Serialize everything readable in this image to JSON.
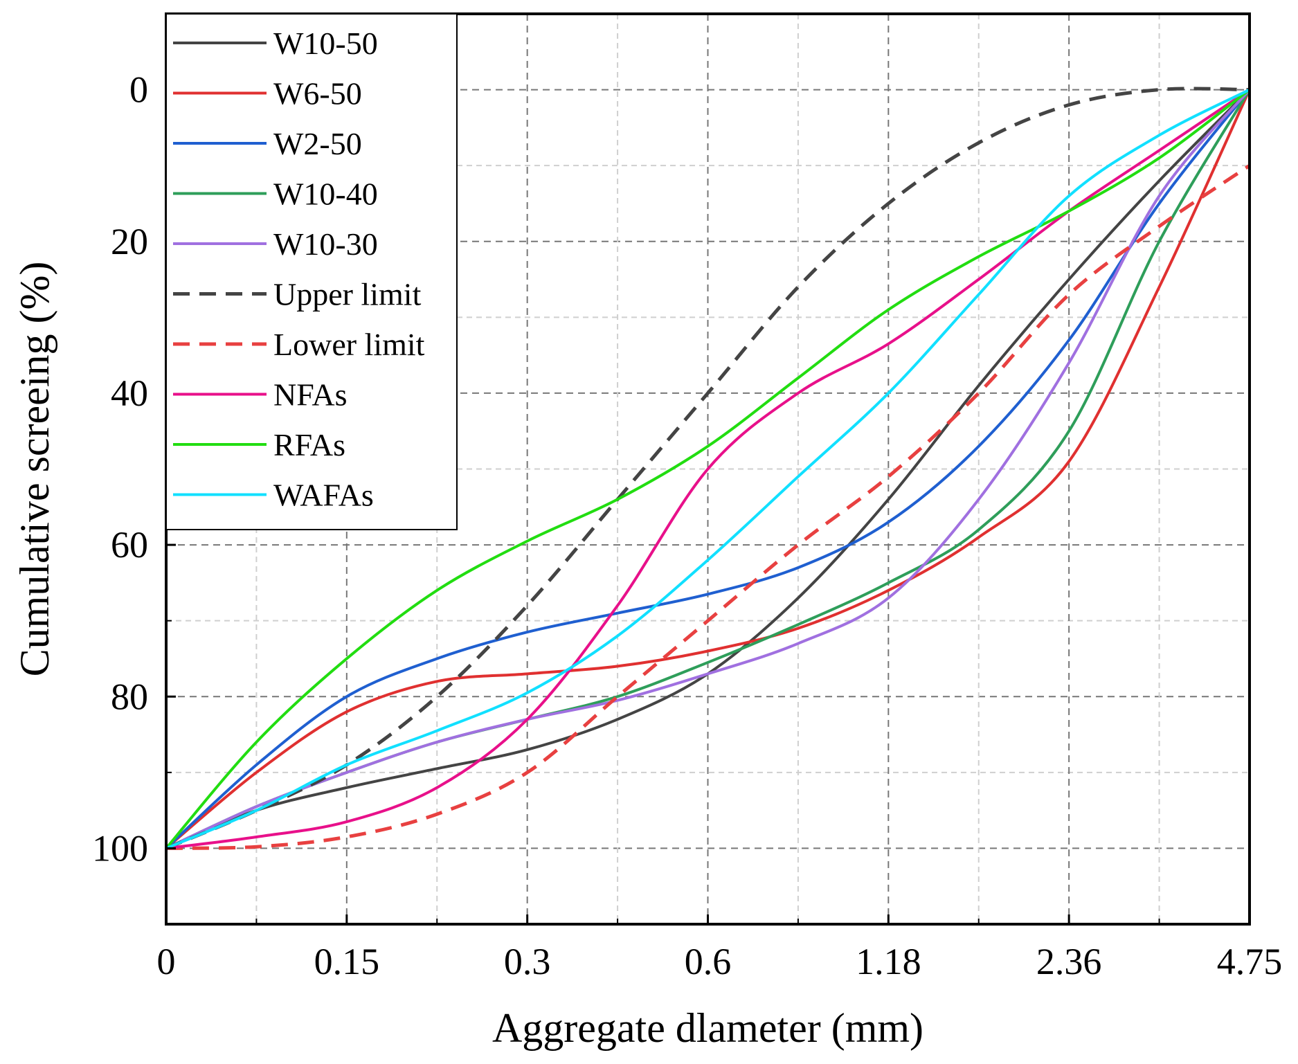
{
  "chart_data": {
    "type": "line",
    "title": "",
    "xlabel": "Aggregate dlameter (mm)",
    "ylabel": "Cumulative screeing (%)",
    "x_ticks": [
      "0",
      "0.15",
      "0.3",
      "0.6",
      "1.18",
      "2.36",
      "4.75"
    ],
    "x_tick_positions": [
      0,
      1,
      2,
      3,
      4,
      5,
      6
    ],
    "y_ticks": [
      0,
      20,
      40,
      60,
      80,
      100
    ],
    "xlim": [
      0,
      6
    ],
    "ylim": [
      110,
      -10
    ],
    "y_inverted": true,
    "grid": true,
    "legend_position": "top-left",
    "series": [
      {
        "name": "W10-50",
        "color": "#444444",
        "dash": "solid",
        "x": [
          0,
          0.5,
          1,
          1.5,
          2,
          2.5,
          3,
          3.5,
          4,
          4.5,
          5,
          5.5,
          6
        ],
        "y": [
          100,
          95,
          92,
          89.5,
          87,
          83,
          77,
          67,
          54,
          39,
          25,
          12,
          0
        ]
      },
      {
        "name": "W6-50",
        "color": "#e03030",
        "dash": "solid",
        "x": [
          0,
          0.5,
          1,
          1.5,
          2,
          2.5,
          3,
          3.5,
          4,
          4.5,
          5,
          5.5,
          6
        ],
        "y": [
          100,
          90,
          82,
          78,
          77,
          76,
          74,
          71,
          66,
          59,
          49,
          26,
          0
        ]
      },
      {
        "name": "W2-50",
        "color": "#1f5fd0",
        "dash": "solid",
        "x": [
          0,
          0.5,
          1,
          1.5,
          2,
          2.5,
          3,
          3.5,
          4,
          4.5,
          5,
          5.5,
          6
        ],
        "y": [
          100,
          89,
          80,
          75,
          71.5,
          69,
          66.5,
          63,
          57,
          47,
          33,
          15,
          0
        ]
      },
      {
        "name": "W10-40",
        "color": "#2e9e5a",
        "dash": "solid",
        "x": [
          0,
          0.5,
          1,
          1.5,
          2,
          2.5,
          3,
          3.5,
          4,
          4.5,
          5,
          5.5,
          6
        ],
        "y": [
          100,
          94.5,
          90,
          86,
          83,
          80,
          75.5,
          70.5,
          65,
          58,
          45,
          20,
          0
        ]
      },
      {
        "name": "W10-30",
        "color": "#a070e0",
        "dash": "solid",
        "x": [
          0,
          0.5,
          1,
          1.5,
          2,
          2.5,
          3,
          3.5,
          4,
          4.5,
          5,
          5.5,
          6
        ],
        "y": [
          100,
          94.5,
          90,
          86,
          83,
          80.5,
          77,
          73,
          67,
          54,
          36,
          14,
          0
        ]
      },
      {
        "name": "Upper limit",
        "color": "#444444",
        "dash": "dashed",
        "x": [
          0,
          0.5,
          1,
          1.5,
          2,
          2.5,
          3,
          3.5,
          4,
          4.5,
          5,
          5.5,
          6
        ],
        "y": [
          100,
          95,
          89,
          80,
          68,
          54,
          40,
          26,
          15,
          7,
          2,
          0,
          0
        ]
      },
      {
        "name": "Lower limit",
        "color": "#e84040",
        "dash": "dashed",
        "x": [
          0,
          0.5,
          1,
          1.5,
          2,
          2.5,
          3,
          3.5,
          4,
          4.5,
          5,
          5.5,
          6
        ],
        "y": [
          100,
          99.8,
          98.5,
          95.5,
          90,
          80,
          70,
          60,
          51,
          40,
          27,
          18,
          10
        ]
      },
      {
        "name": "NFAs",
        "color": "#e8108a",
        "dash": "solid",
        "x": [
          0,
          0.5,
          1,
          1.5,
          2,
          2.5,
          3,
          3.5,
          4,
          4.5,
          5,
          5.5,
          6
        ],
        "y": [
          100,
          98.5,
          96.5,
          92,
          83,
          68,
          50,
          40,
          33.5,
          25,
          16,
          8,
          0
        ]
      },
      {
        "name": "RFAs",
        "color": "#22dd11",
        "dash": "solid",
        "x": [
          0,
          0.5,
          1,
          1.5,
          2,
          2.5,
          3,
          3.5,
          4,
          4.5,
          5,
          5.5,
          6
        ],
        "y": [
          100,
          86,
          75,
          66,
          59.5,
          54,
          47,
          38,
          29,
          22,
          16,
          9,
          0
        ]
      },
      {
        "name": "WAFAs",
        "color": "#11e0ff",
        "dash": "solid",
        "x": [
          0,
          0.5,
          1,
          1.5,
          2,
          2.5,
          3,
          3.5,
          4,
          4.5,
          5,
          5.5,
          6
        ],
        "y": [
          100,
          95,
          89,
          84.5,
          79.5,
          72,
          62,
          51,
          40,
          27,
          14,
          6,
          0
        ]
      }
    ]
  }
}
